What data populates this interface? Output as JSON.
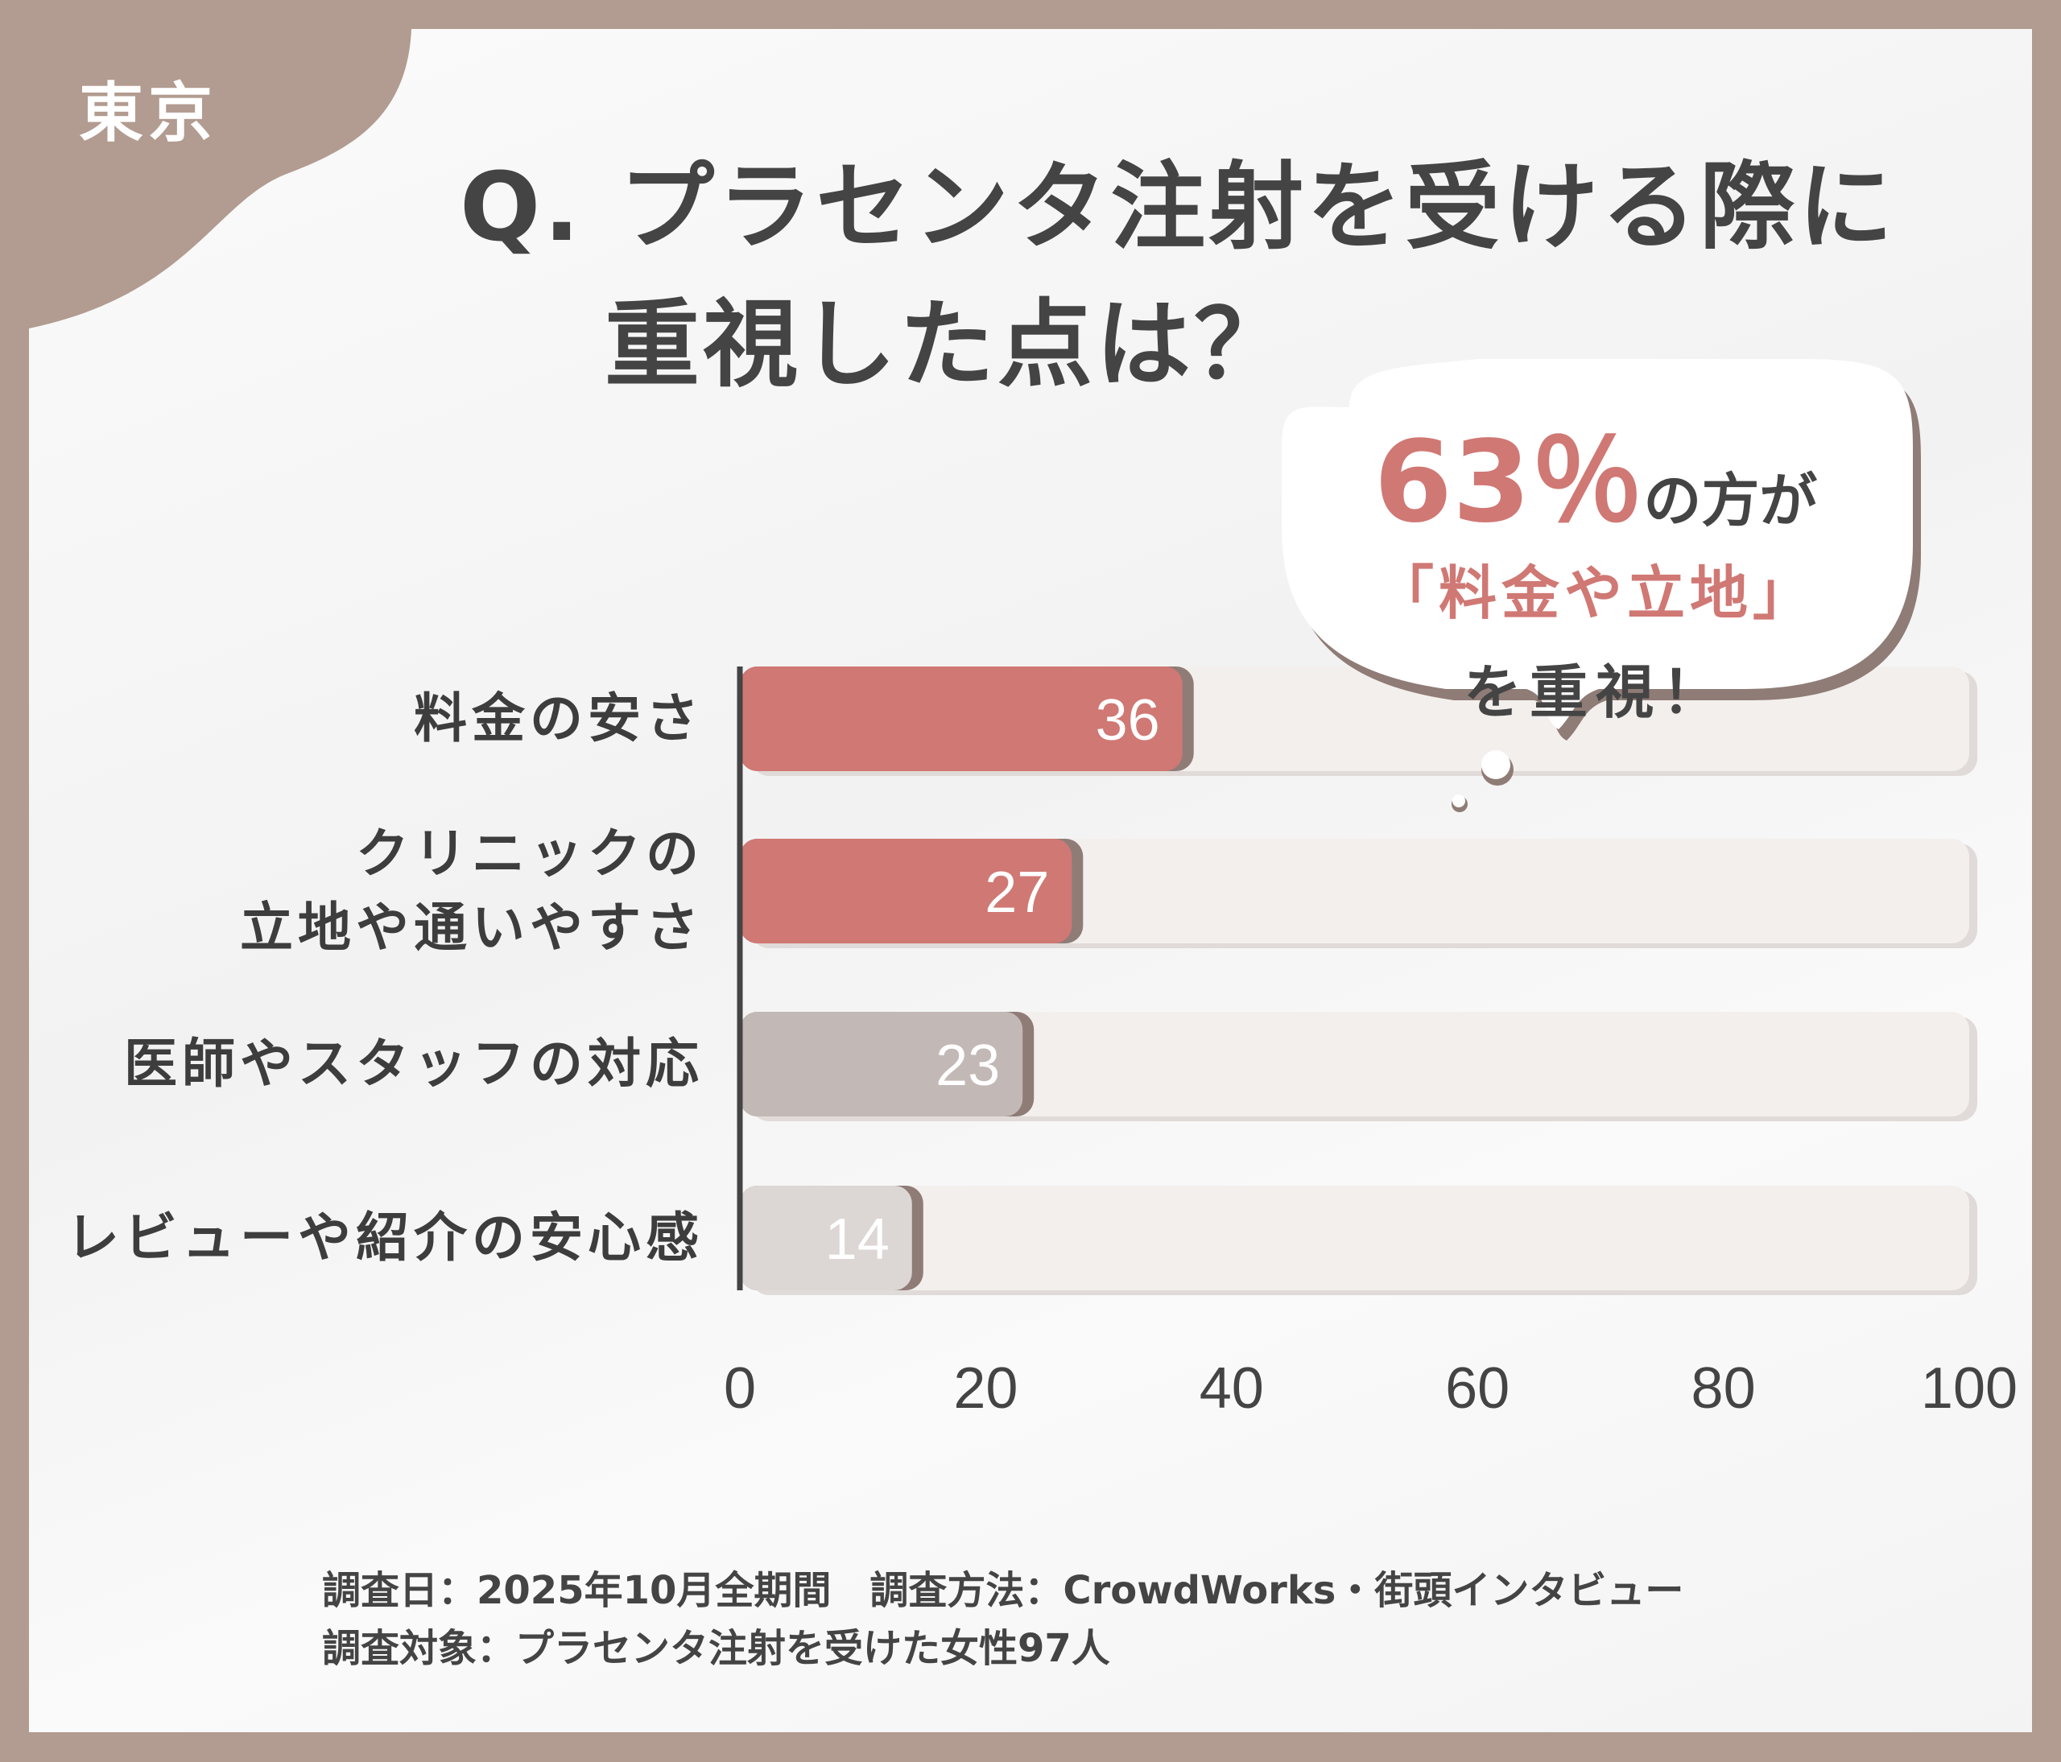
{
  "badge": "東京",
  "title": {
    "line1": "Q. プラセンタ注射を受ける際に",
    "line2": "重視した点は？"
  },
  "callout": {
    "percent": "63％",
    "line1_rest": "の方が",
    "line2": "「料金や立地」",
    "line3": "を重視！"
  },
  "chart_data": {
    "type": "bar",
    "orientation": "horizontal",
    "categories": [
      "料金の安さ",
      "クリニックの\n立地や通いやすさ",
      "医師やスタッフの対応",
      "レビューや紹介の安心感"
    ],
    "category_lines": [
      [
        "料金の安さ"
      ],
      [
        "クリニックの",
        "立地や通いやすさ"
      ],
      [
        "医師やスタッフの対応"
      ],
      [
        "レビューや紹介の安心感"
      ]
    ],
    "values": [
      36,
      27,
      23,
      14
    ],
    "data_labels": [
      "36",
      "27",
      "23",
      "14"
    ],
    "bar_colors": [
      "#d07874",
      "#d07874",
      "#c2b9b6",
      "#dcd6d4"
    ],
    "track_color": "#f3efed",
    "xlim": [
      0,
      100
    ],
    "xticks": [
      "0",
      "20",
      "40",
      "60",
      "80",
      "100"
    ],
    "grid": false,
    "title": "",
    "xlabel": "",
    "ylabel": ""
  },
  "footer": {
    "line1": "調査日：2025年10月全期間　調査方法：CrowdWorks・街頭インタビュー",
    "line2": "調査対象：プラセンタ注射を受けた女性97人"
  },
  "colors": {
    "frame": "#b29b90",
    "accent": "#d07874",
    "text": "#444444"
  }
}
